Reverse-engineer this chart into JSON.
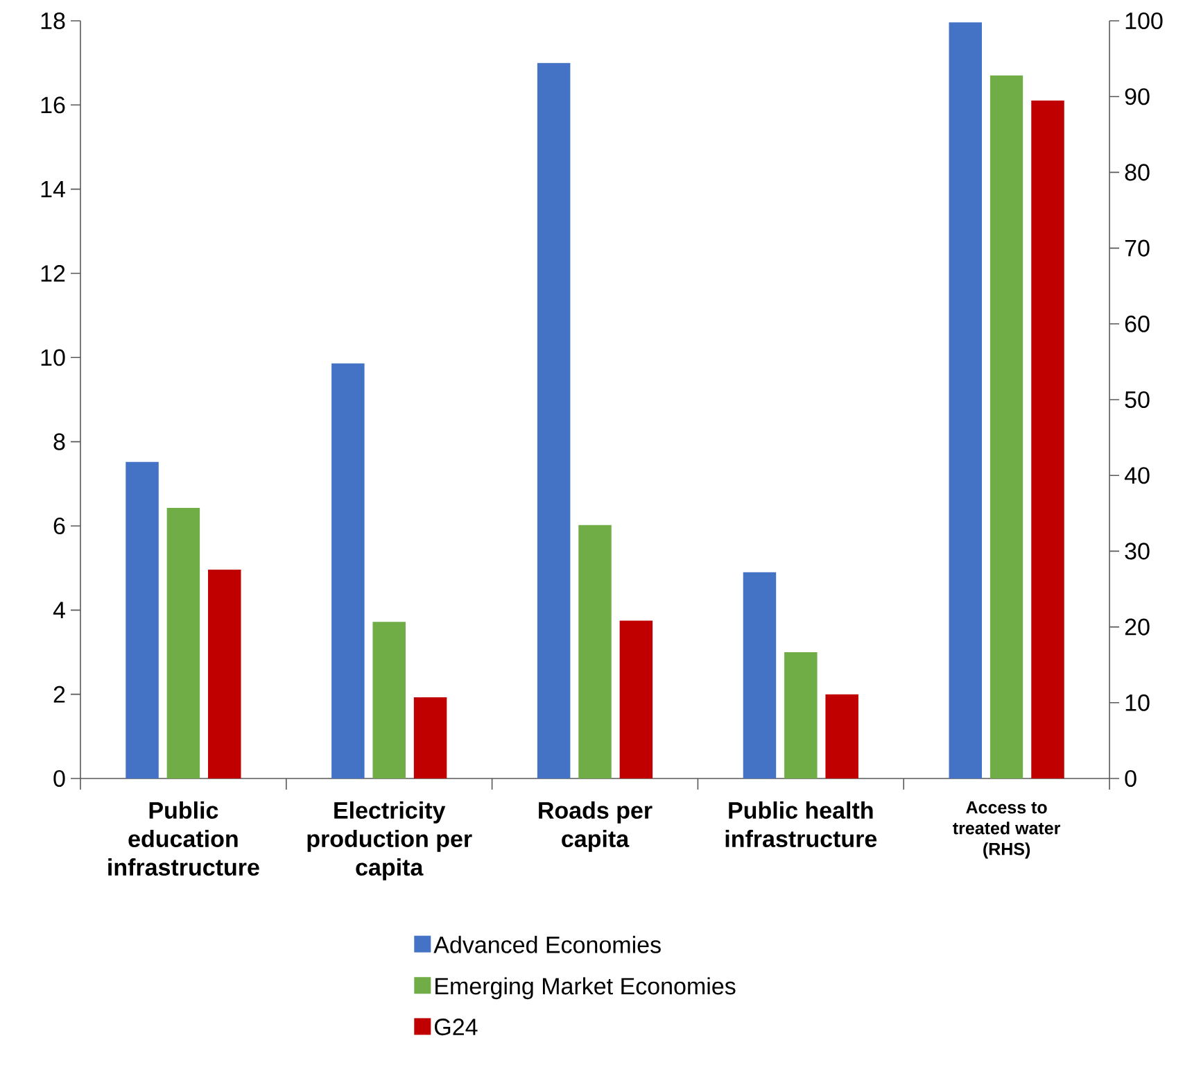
{
  "chart_data": {
    "type": "bar",
    "categories": [
      "Public education infrastructure",
      "Electricity production per capita",
      "Roads per capita",
      "Public health infrastructure",
      "Access to treated water (RHS)"
    ],
    "series": [
      {
        "name": "Advanced Economies",
        "color": "#4472c4",
        "values": [
          7.52,
          9.86,
          17.0,
          4.9,
          null
        ]
      },
      {
        "name": "Emerging Market Economies",
        "color": "#70ad47",
        "values": [
          6.43,
          3.72,
          6.02,
          3.0,
          null
        ]
      },
      {
        "name": "G24",
        "color": "#c00000",
        "values": [
          4.96,
          1.93,
          3.75,
          2.0,
          null
        ]
      },
      {
        "color": "#4472c4",
        "axis": "y2",
        "values": [
          null,
          null,
          null,
          null,
          99.8
        ]
      },
      {
        "color": "#70ad47",
        "axis": "y2",
        "values": [
          null,
          null,
          null,
          null,
          92.8
        ]
      },
      {
        "color": "#c00000",
        "axis": "y2",
        "values": [
          null,
          null,
          null,
          null,
          89.5
        ]
      }
    ],
    "ylim": [
      0,
      18
    ],
    "yticks": [
      0,
      2,
      4,
      6,
      8,
      10,
      12,
      14,
      16,
      18
    ],
    "y2lim": [
      0,
      100
    ],
    "y2ticks": [
      0,
      10,
      20,
      30,
      40,
      50,
      60,
      70,
      80,
      90,
      100
    ],
    "grid": false,
    "legend": "bottom"
  }
}
